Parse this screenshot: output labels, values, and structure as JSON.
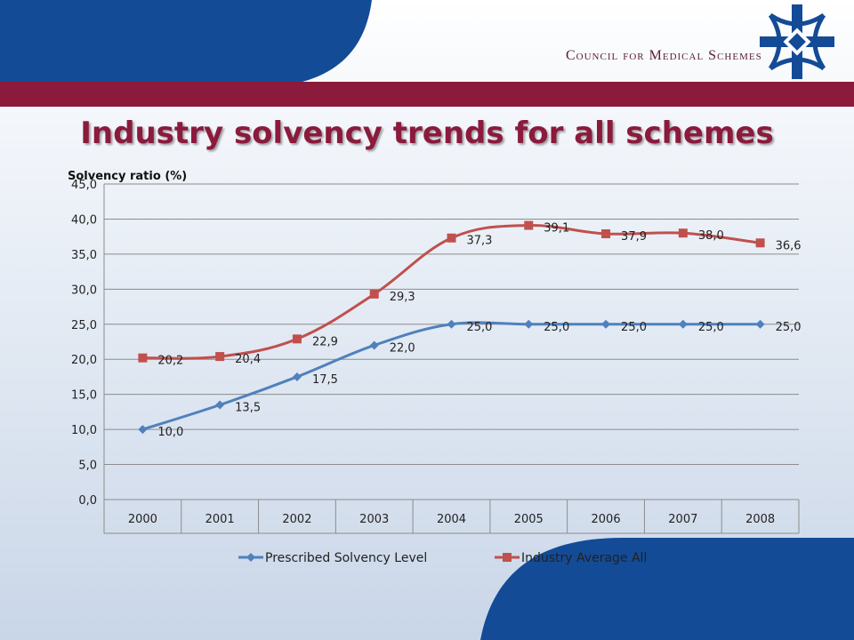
{
  "header": {
    "logo_text": "Council for Medical Schemes",
    "colors": {
      "brand_blue": "#144b96",
      "brand_maroon": "#8b1a3c"
    }
  },
  "slide": {
    "title": "Industry solvency trends for all schemes"
  },
  "chart_data": {
    "type": "line",
    "title": "",
    "xlabel": "",
    "ylabel": "Solvency ratio (%)",
    "categories": [
      "2000",
      "2001",
      "2002",
      "2003",
      "2004",
      "2005",
      "2006",
      "2007",
      "2008"
    ],
    "ylim": [
      0,
      45
    ],
    "yticks": [
      "0,0",
      "5,0",
      "10,0",
      "15,0",
      "20,0",
      "25,0",
      "30,0",
      "35,0",
      "40,0",
      "45,0"
    ],
    "grid": true,
    "legend_position": "bottom",
    "series": [
      {
        "name": "Prescribed Solvency Level",
        "color": "#4f81bd",
        "marker": "diamond",
        "values": [
          10.0,
          13.5,
          17.5,
          22.0,
          25.0,
          25.0,
          25.0,
          25.0,
          25.0
        ],
        "labels": [
          "10,0",
          "13,5",
          "17,5",
          "22,0",
          "25,0",
          "25,0",
          "25,0",
          "25,0",
          "25,0"
        ]
      },
      {
        "name": "Industry Average All",
        "color": "#c0504d",
        "marker": "square",
        "values": [
          20.2,
          20.4,
          22.9,
          29.3,
          37.3,
          39.1,
          37.9,
          38.0,
          36.6
        ],
        "labels": [
          "20,2",
          "20,4",
          "22,9",
          "29,3",
          "37,3",
          "39,1",
          "37,9",
          "38,0",
          "36,6"
        ]
      }
    ]
  }
}
